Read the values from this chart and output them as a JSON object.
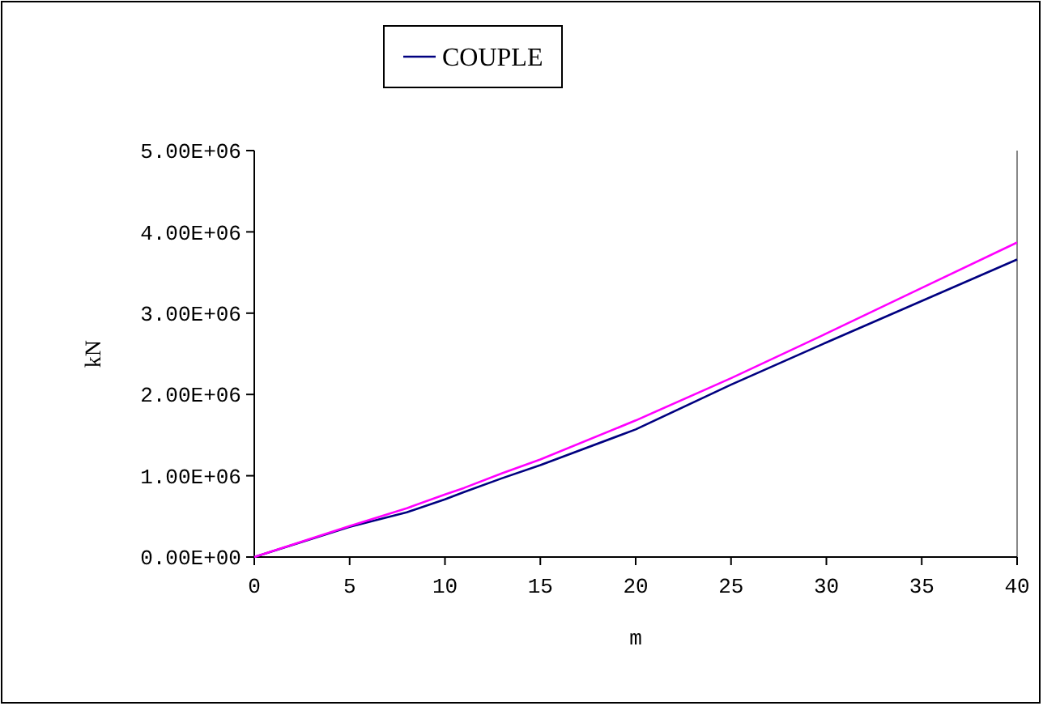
{
  "chart_data": {
    "type": "line",
    "xlabel": "m",
    "ylabel": "kN",
    "xlim": [
      0,
      40
    ],
    "xticks": [
      0,
      5,
      10,
      15,
      20,
      25,
      30,
      35,
      40
    ],
    "ylim": [
      0,
      5000000
    ],
    "yticks": [
      {
        "value": 0,
        "label": "0.00E+00"
      },
      {
        "value": 1000000,
        "label": "1.00E+06"
      },
      {
        "value": 2000000,
        "label": "2.00E+06"
      },
      {
        "value": 3000000,
        "label": "3.00E+06"
      },
      {
        "value": 4000000,
        "label": "4.00E+06"
      },
      {
        "value": 5000000,
        "label": "5.00E+06"
      }
    ],
    "grid": false,
    "legend": "top",
    "marker": "none",
    "line_style": "solid",
    "x": [
      0,
      5,
      8,
      10,
      11,
      13,
      15,
      20,
      25,
      30,
      35,
      40
    ],
    "series": [
      {
        "name": "COUPLE",
        "color": "#000080",
        "values": [
          0,
          370000,
          550000,
          710000,
          800000,
          970000,
          1130000,
          1570000,
          2120000,
          2640000,
          3150000,
          3660000
        ]
      },
      {
        "color": "#ff00ff",
        "values": [
          0,
          380000,
          600000,
          770000,
          850000,
          1030000,
          1200000,
          1680000,
          2200000,
          2750000,
          3310000,
          3870000
        ]
      }
    ]
  }
}
